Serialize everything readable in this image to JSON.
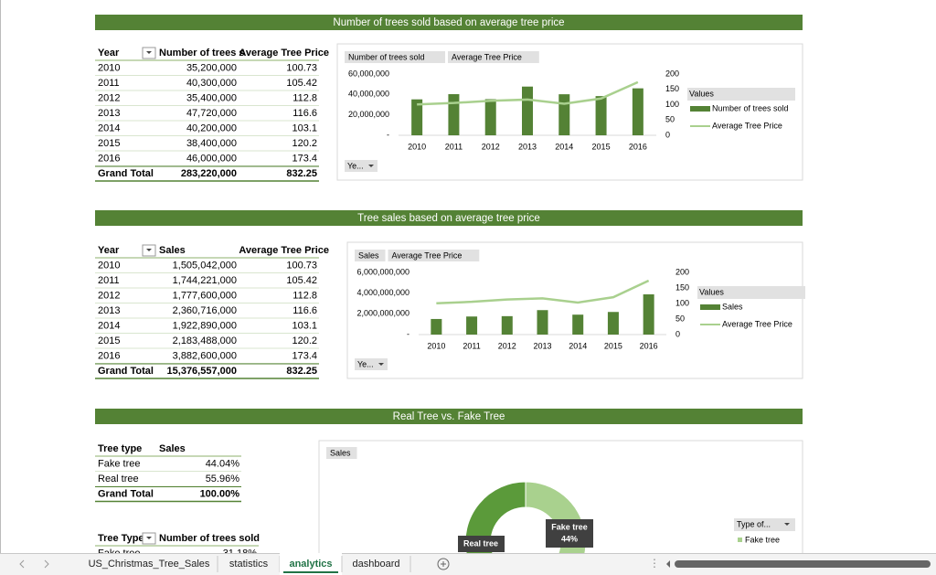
{
  "sections": [
    {
      "title": "Number of trees sold based on average tree price",
      "table": {
        "headers": [
          "Year",
          "Number of trees s",
          "Average Tree Price"
        ],
        "rows": [
          [
            "2010",
            "35,200,000",
            "100.73"
          ],
          [
            "2011",
            "40,300,000",
            "105.42"
          ],
          [
            "2012",
            "35,400,000",
            "112.8"
          ],
          [
            "2013",
            "47,720,000",
            "116.6"
          ],
          [
            "2014",
            "40,200,000",
            "103.1"
          ],
          [
            "2015",
            "38,400,000",
            "120.2"
          ],
          [
            "2016",
            "46,000,000",
            "173.4"
          ]
        ],
        "total": [
          "Grand Total",
          "283,220,000",
          "832.25"
        ]
      },
      "chart": {
        "type": "bar_line",
        "buttons": [
          "Number of trees sold",
          "Average Tree Price"
        ],
        "filter": "Ye...",
        "categories": [
          "2010",
          "2011",
          "2012",
          "2013",
          "2014",
          "2015",
          "2016"
        ],
        "ylim": [
          0,
          60000000
        ],
        "yticks": [
          {
            "value": 0,
            "label": "-"
          },
          {
            "value": 20000000,
            "label": "20,000,000"
          },
          {
            "value": 40000000,
            "label": "40,000,000"
          },
          {
            "value": 60000000,
            "label": "60,000,000"
          }
        ],
        "y2lim": [
          0,
          200
        ],
        "y2ticks": [
          0,
          50,
          100,
          150,
          200
        ],
        "legend_title": "Values",
        "series": [
          {
            "name": "Number of trees sold",
            "color": "#548235",
            "values": [
              35200000,
              40300000,
              35400000,
              47720000,
              40200000,
              38400000,
              46000000
            ]
          },
          {
            "name": "Average Tree Price",
            "color": "#a9d08e",
            "axis": "y2",
            "values": [
              100.73,
              105.42,
              112.8,
              116.6,
              103.1,
              120.2,
              173.4
            ]
          }
        ]
      }
    },
    {
      "title": "Tree sales based on average tree price",
      "table": {
        "headers": [
          "Year",
          "Sales",
          "Average Tree Price"
        ],
        "rows": [
          [
            "2010",
            "1,505,042,000",
            "100.73"
          ],
          [
            "2011",
            "1,744,221,000",
            "105.42"
          ],
          [
            "2012",
            "1,777,600,000",
            "112.8"
          ],
          [
            "2013",
            "2,360,716,000",
            "116.6"
          ],
          [
            "2014",
            "1,922,890,000",
            "103.1"
          ],
          [
            "2015",
            "2,183,488,000",
            "120.2"
          ],
          [
            "2016",
            "3,882,600,000",
            "173.4"
          ]
        ],
        "total": [
          "Grand Total",
          "15,376,557,000",
          "832.25"
        ]
      },
      "chart": {
        "type": "bar_line",
        "buttons": [
          "Sales",
          "Average Tree Price"
        ],
        "filter": "Ye...",
        "categories": [
          "2010",
          "2011",
          "2012",
          "2013",
          "2014",
          "2015",
          "2016"
        ],
        "ylim": [
          0,
          6000000000
        ],
        "yticks": [
          {
            "value": 0,
            "label": "-"
          },
          {
            "value": 2000000000,
            "label": "2,000,000,000"
          },
          {
            "value": 4000000000,
            "label": "4,000,000,000"
          },
          {
            "value": 6000000000,
            "label": "6,000,000,000"
          }
        ],
        "y2lim": [
          0,
          200
        ],
        "y2ticks": [
          0,
          50,
          100,
          150,
          200
        ],
        "legend_title": "Values",
        "series": [
          {
            "name": "Sales",
            "color": "#548235",
            "values": [
              1505042000,
              1744221000,
              1777600000,
              2360716000,
              1922890000,
              2183488000,
              3882600000
            ]
          },
          {
            "name": "Average Tree Price",
            "color": "#a9d08e",
            "axis": "y2",
            "values": [
              100.73,
              105.42,
              112.8,
              116.6,
              103.1,
              120.2,
              173.4
            ]
          }
        ]
      }
    },
    {
      "title": "Real Tree vs. Fake Tree",
      "table": {
        "headers": [
          "Tree type",
          "Sales"
        ],
        "rows": [
          [
            "Fake tree",
            "44.04%"
          ],
          [
            "Real tree",
            "55.96%"
          ]
        ],
        "total": [
          "Grand Total",
          "100.00%"
        ]
      },
      "table2": {
        "headers": [
          "Tree Type",
          "Number of trees sold"
        ],
        "rows": [
          [
            "Fake tree",
            "31.18%"
          ]
        ]
      },
      "chart": {
        "type": "pie",
        "buttons": [
          "Sales"
        ],
        "categories": [
          "Fake tree",
          "Real tree"
        ],
        "values": [
          44.04,
          55.96
        ],
        "value_labels": [
          "44%",
          null
        ],
        "colors": [
          "#a9d18e",
          "#5b9a3a"
        ],
        "legend_title": "Type of..."
      }
    }
  ],
  "tabs": [
    "US_Christmas_Tree_Sales",
    "statistics",
    "analytics",
    "dashboard"
  ],
  "active_tab": 2
}
